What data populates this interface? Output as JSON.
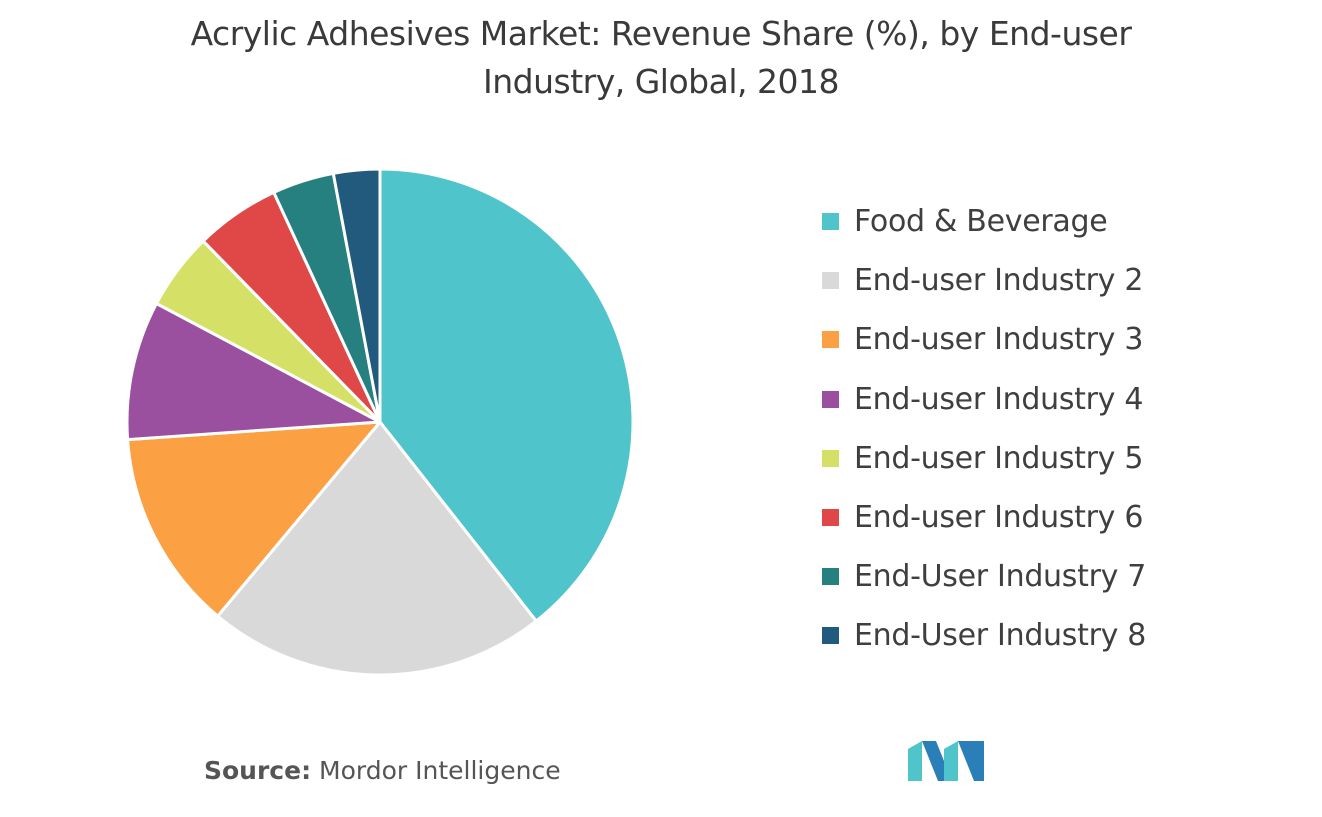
{
  "title": {
    "line1": "Acrylic Adhesives Market: Revenue Share (%), by End-user",
    "line2": "Industry, Global, 2018"
  },
  "source": {
    "label": "Source:",
    "text": "Mordor Intelligence"
  },
  "logo": {
    "icon": "mordor-intelligence-logo"
  },
  "chart_data": {
    "type": "pie",
    "title": "Acrylic Adhesives Market: Revenue Share (%), by End-user Industry, Global, 2018",
    "legend_position": "right",
    "start": "top, clockwise",
    "categories": [
      "Food & Beverage",
      "End-user Industry 2",
      "End-user Industry 3",
      "End-user Industry 4",
      "End-user Industry 5",
      "End-user Industry 6",
      "End-User Industry 7",
      "End-User Industry 8"
    ],
    "values": [
      40,
      22,
      13,
      9,
      5,
      5.5,
      4,
      3
    ],
    "colors": [
      "#4fc4cb",
      "#d9d9d9",
      "#fba043",
      "#9a4f9f",
      "#d5e166",
      "#e04848",
      "#25807f",
      "#215a7c"
    ]
  }
}
